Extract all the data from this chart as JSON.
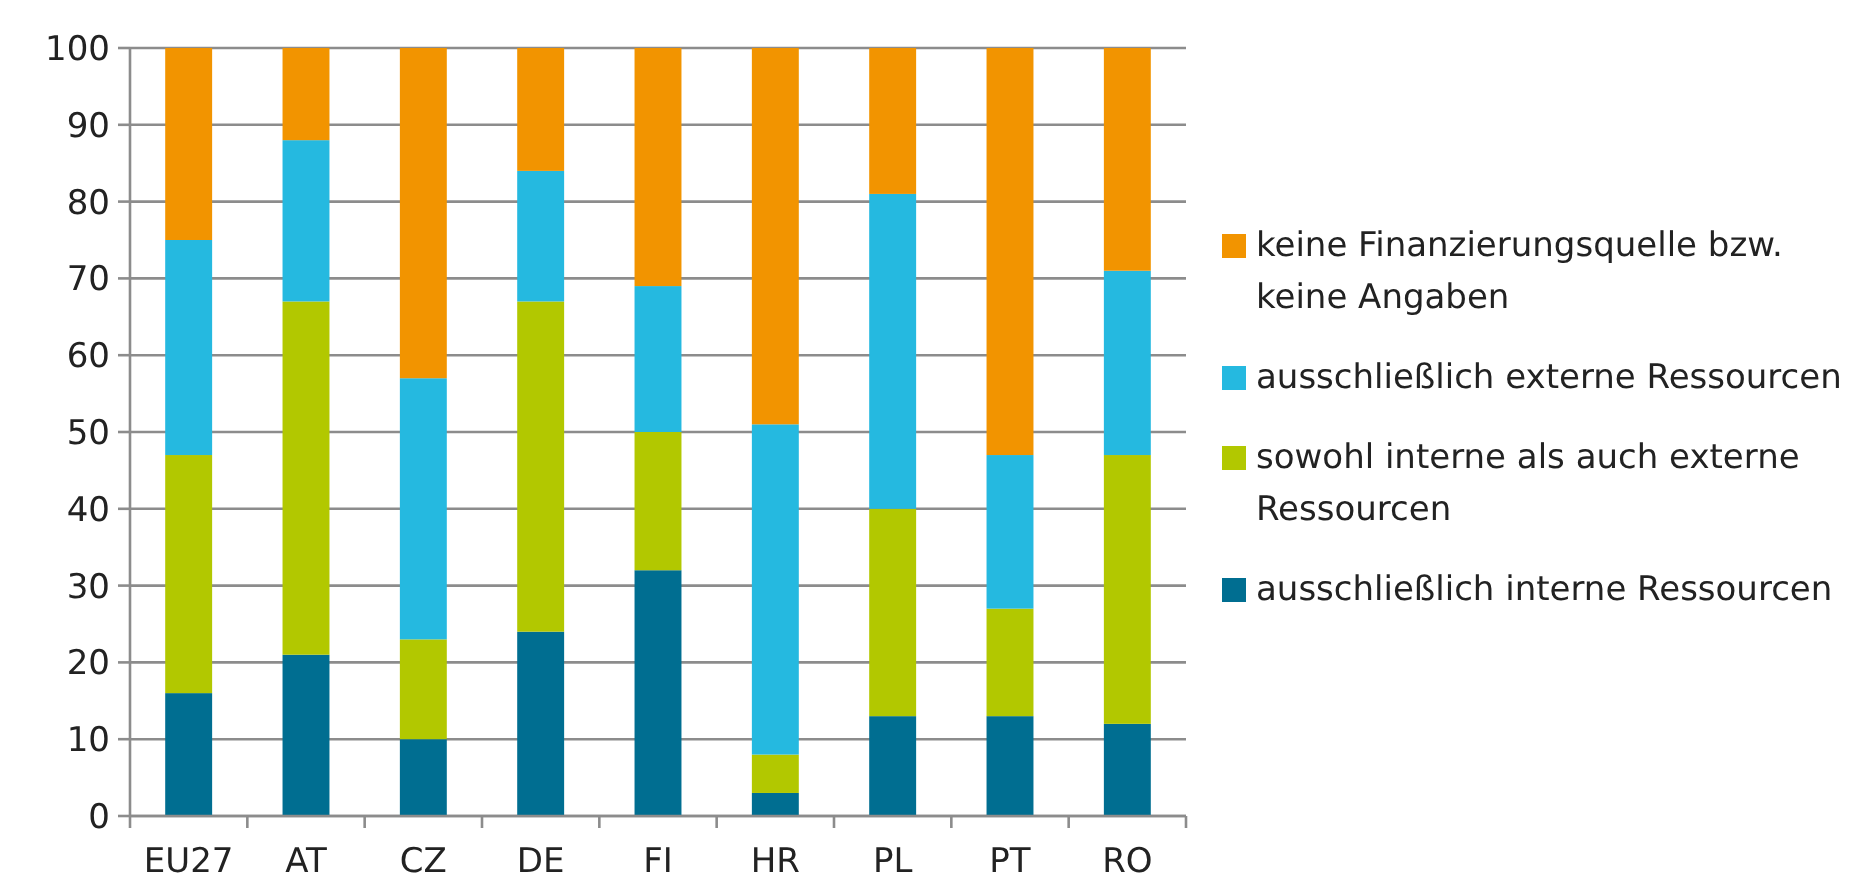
{
  "chart_data": {
    "type": "bar",
    "stacked": true,
    "categories": [
      "EU27",
      "AT",
      "CZ",
      "DE",
      "FI",
      "HR",
      "PL",
      "PT",
      "RO"
    ],
    "series": [
      {
        "name": "ausschließlich interne Ressourcen",
        "color": "#006e91",
        "values": [
          16,
          21,
          10,
          24,
          32,
          3,
          13,
          13,
          12
        ]
      },
      {
        "name": "sowohl interne als auch externe Ressourcen",
        "color": "#b2c800",
        "values": [
          31,
          46,
          13,
          43,
          18,
          5,
          27,
          14,
          35
        ]
      },
      {
        "name": "ausschließlich externe Ressourcen",
        "color": "#25b9e0",
        "values": [
          28,
          21,
          34,
          17,
          19,
          43,
          41,
          20,
          24
        ]
      },
      {
        "name": "keine Finanzierungsquelle bzw. keine Angaben",
        "color": "#f29400",
        "values": [
          25,
          12,
          43,
          16,
          31,
          49,
          19,
          53,
          29
        ]
      }
    ],
    "ylim": [
      0,
      100
    ],
    "yticks": [
      0,
      10,
      20,
      30,
      40,
      50,
      60,
      70,
      80,
      90,
      100
    ],
    "grid": "y",
    "legend": "right"
  }
}
